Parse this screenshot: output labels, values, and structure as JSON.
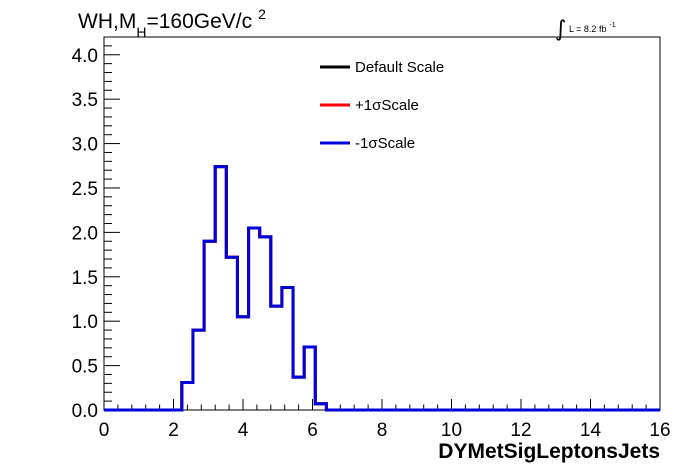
{
  "chart_data": {
    "type": "line",
    "title": {
      "pre": "WH,M",
      "sub": "H",
      "mid": "=160GeV/c",
      "sup": "2"
    },
    "lumi": {
      "integral": "∫",
      "text": "L = 8.2 fb",
      "sup": "-1"
    },
    "xlabel": "DYMetSigLeptonsJets",
    "ylabel": "",
    "xlim": [
      0,
      16
    ],
    "ylim": [
      0,
      4.2
    ],
    "x_ticks": [
      "0",
      "2",
      "4",
      "6",
      "8",
      "10",
      "12",
      "14",
      "16"
    ],
    "y_ticks": [
      "0.0",
      "0.5",
      "1.0",
      "1.5",
      "2.0",
      "2.5",
      "3.0",
      "3.5",
      "4.0"
    ],
    "legend_position": "top-center",
    "bin_width": 0.32,
    "bin_edges_start": 0,
    "series": [
      {
        "name": "Default Scale",
        "color": "#000000",
        "values": [
          0,
          0,
          0,
          0,
          0,
          0,
          0,
          0.31,
          0.9,
          1.9,
          2.74,
          1.72,
          1.05,
          2.05,
          1.95,
          1.17,
          1.38,
          0.37,
          0.71,
          0.07,
          0,
          0,
          0,
          0,
          0,
          0,
          0,
          0,
          0,
          0,
          0,
          0,
          0,
          0,
          0,
          0,
          0,
          0,
          0,
          0,
          0,
          0,
          0,
          0,
          0,
          0,
          0,
          0,
          0,
          0
        ]
      },
      {
        "name": "+1σScale",
        "color": "#ff0000",
        "values": [
          0,
          0,
          0,
          0,
          0,
          0,
          0,
          0.31,
          0.9,
          1.9,
          2.74,
          1.72,
          1.05,
          2.05,
          1.95,
          1.17,
          1.38,
          0.37,
          0.71,
          0.07,
          0,
          0,
          0,
          0,
          0,
          0,
          0,
          0,
          0,
          0,
          0,
          0,
          0,
          0,
          0,
          0,
          0,
          0,
          0,
          0,
          0,
          0,
          0,
          0,
          0,
          0,
          0,
          0,
          0,
          0
        ]
      },
      {
        "name": "-1σScale",
        "color": "#0000dd",
        "values": [
          0,
          0,
          0,
          0,
          0,
          0,
          0,
          0.31,
          0.9,
          1.9,
          2.74,
          1.72,
          1.05,
          2.05,
          1.95,
          1.17,
          1.38,
          0.37,
          0.71,
          0.07,
          0,
          0,
          0,
          0,
          0,
          0,
          0,
          0,
          0,
          0,
          0,
          0,
          0,
          0,
          0,
          0,
          0,
          0,
          0,
          0,
          0,
          0,
          0,
          0,
          0,
          0,
          0,
          0,
          0,
          0
        ]
      }
    ]
  }
}
